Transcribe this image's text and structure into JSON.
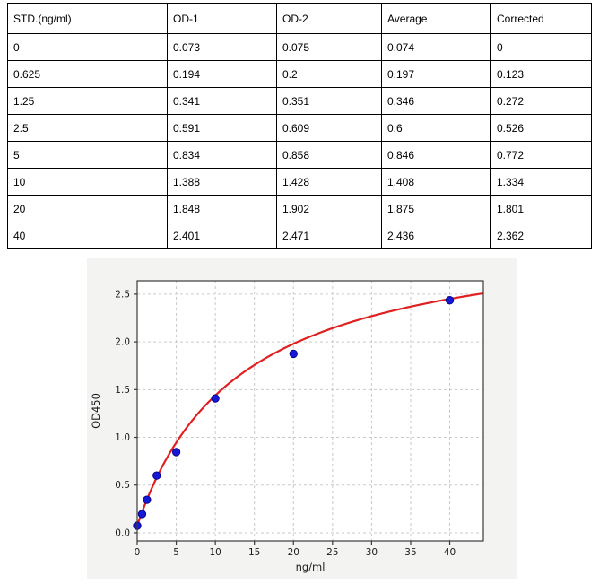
{
  "table": {
    "headers": [
      "STD.(ng/ml)",
      "OD-1",
      "OD-2",
      "Average",
      "Corrected"
    ],
    "rows": [
      [
        "0",
        "0.073",
        "0.075",
        "0.074",
        "0"
      ],
      [
        "0.625",
        "0.194",
        "0.2",
        "0.197",
        "0.123"
      ],
      [
        "1.25",
        "0.341",
        "0.351",
        "0.346",
        "0.272"
      ],
      [
        "2.5",
        "0.591",
        "0.609",
        "0.6",
        "0.526"
      ],
      [
        "5",
        "0.834",
        "0.858",
        "0.846",
        "0.772"
      ],
      [
        "10",
        "1.388",
        "1.428",
        "1.408",
        "1.334"
      ],
      [
        "20",
        "1.848",
        "1.902",
        "1.875",
        "1.801"
      ],
      [
        "40",
        "2.401",
        "2.471",
        "2.436",
        "2.362"
      ]
    ]
  },
  "chart_data": {
    "type": "scatter",
    "title": "",
    "xlabel": "ng/ml",
    "ylabel": "OD450",
    "x": [
      0,
      0.625,
      1.25,
      2.5,
      5,
      10,
      20,
      40
    ],
    "y": [
      0.074,
      0.197,
      0.346,
      0.6,
      0.846,
      1.408,
      1.875,
      2.436
    ],
    "xlim": [
      0,
      44.3
    ],
    "ylim": [
      -0.085,
      2.64
    ],
    "xticks": [
      0,
      5,
      10,
      15,
      20,
      25,
      30,
      35,
      40
    ],
    "yticks": [
      0.0,
      0.5,
      1.0,
      1.5,
      2.0,
      2.5
    ],
    "grid": true,
    "legend": "none",
    "fit_curve": {
      "model": "saturation: y = y0 + vmax*x/(k+x)",
      "y0": 0.074,
      "vmax": 3.154,
      "k": 13.1
    },
    "colors": {
      "point": "#1717d6",
      "point_edge": "#00008b",
      "curve": "#e02020",
      "grid": "#c9c9c9",
      "spine": "#3a3a3a",
      "tick_text": "#1a1a1a",
      "figure_bg": "#f3f3f2",
      "plot_bg": "#ffffff"
    }
  }
}
